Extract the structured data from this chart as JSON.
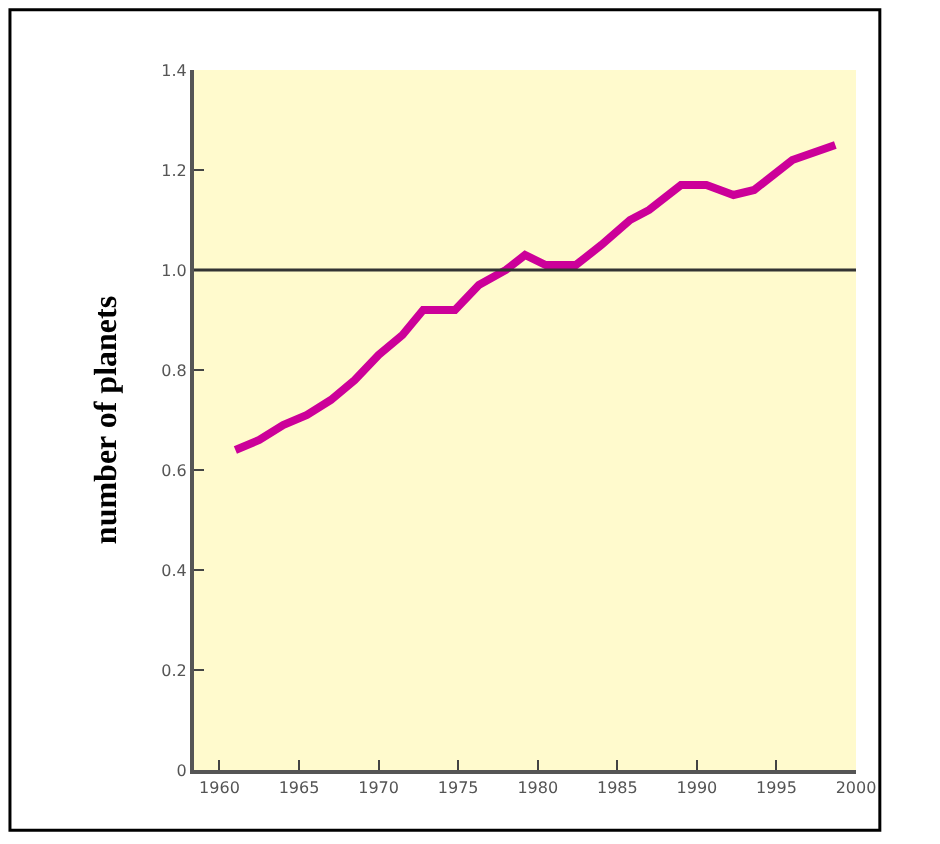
{
  "chart_data": {
    "type": "line",
    "ylabel": "number of planets",
    "x": [
      1961,
      1962.5,
      1964,
      1965.5,
      1967,
      1968.5,
      1970,
      1971.5,
      1972.8,
      1974.8,
      1976.3,
      1978,
      1979.2,
      1980.5,
      1982.4,
      1984,
      1985.8,
      1987,
      1989,
      1990.6,
      1992.3,
      1993.6,
      1996,
      1998.7
    ],
    "series": [
      {
        "color": "#cc0099",
        "values": [
          0.64,
          0.66,
          0.69,
          0.71,
          0.74,
          0.78,
          0.83,
          0.87,
          0.92,
          0.92,
          0.97,
          1.0,
          1.03,
          1.01,
          1.01,
          1.05,
          1.1,
          1.12,
          1.17,
          1.17,
          1.15,
          1.16,
          1.22,
          1.25
        ]
      }
    ],
    "xlim": [
      1958.4,
      2000
    ],
    "xticks": [
      1960,
      1965,
      1970,
      1975,
      1980,
      1985,
      1990,
      1995,
      2000
    ],
    "ylim": [
      0,
      1.4
    ],
    "yticks": [
      0,
      0.2,
      0.4,
      0.6,
      0.8,
      {
        "value": 1.0,
        "label": "1.0"
      },
      1.2,
      1.4
    ],
    "ref_lines": [
      {
        "axis": "y",
        "value": 1.0,
        "color": "#333333",
        "line_style": "solid"
      }
    ],
    "line_style": "solid"
  }
}
